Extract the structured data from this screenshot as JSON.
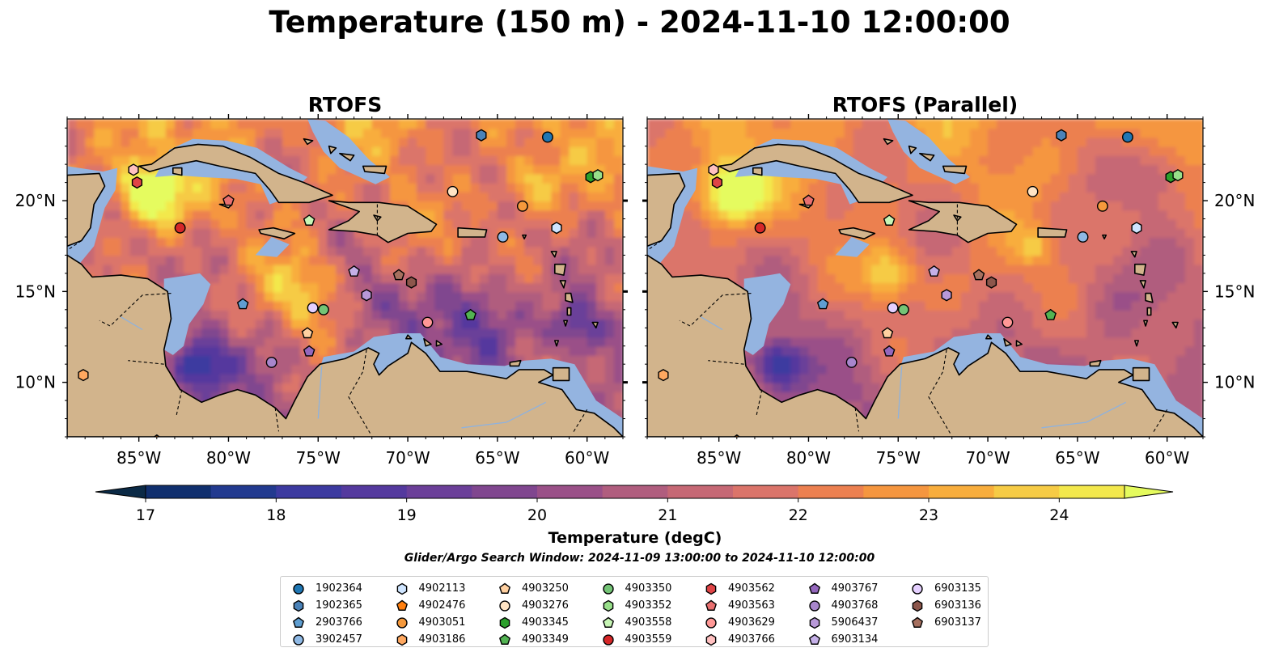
{
  "title": "Temperature (150 m) - 2024-11-10 12:00:00",
  "search_window": "Glider/Argo Search Window: 2024-11-09 13:00:00 to 2024-11-10 12:00:00",
  "colors": {
    "land": "#d2b48c",
    "shelf": "#94b4e0",
    "deep": "#052235",
    "coast": "#000000"
  },
  "chart_data": [
    {
      "type": "heatmap",
      "title": "RTOFS",
      "xlim": [
        -89,
        -58
      ],
      "ylim": [
        7,
        24.5
      ],
      "xticks": [
        -85,
        -80,
        -75,
        -70,
        -65,
        -60
      ],
      "xtick_labels": [
        "85°W",
        "80°W",
        "75°W",
        "70°W",
        "65°W",
        "60°W"
      ],
      "yticks": [
        10,
        15,
        20
      ],
      "ytick_labels": [
        "10°N",
        "15°N",
        "20°N"
      ],
      "ytick_side": "left",
      "anomalies": [
        {
          "lon": -84.3,
          "lat": 20.5,
          "value": 4.2,
          "r": 1.8
        },
        {
          "lon": -81.6,
          "lat": 11,
          "value": -3.5,
          "r": 1.5
        },
        {
          "lon": -76,
          "lat": 15,
          "value": 2.2,
          "r": 2
        },
        {
          "lon": -66,
          "lat": 13.5,
          "value": -2.5,
          "r": 2.5
        },
        {
          "lon": -60.5,
          "lat": 13,
          "value": -2.5,
          "r": 1.5
        },
        {
          "lon": -63,
          "lat": 21,
          "value": 2,
          "r": 1.5
        },
        {
          "lon": -72,
          "lat": 14.5,
          "value": -1.2,
          "r": 1.6
        },
        {
          "lon": -68,
          "lat": 22,
          "value": -0.8,
          "r": 2
        }
      ]
    },
    {
      "type": "heatmap",
      "title": "RTOFS (Parallel)",
      "xlim": [
        -89,
        -58
      ],
      "ylim": [
        7,
        24.5
      ],
      "xticks": [
        -85,
        -80,
        -75,
        -70,
        -65,
        -60
      ],
      "xtick_labels": [
        "85°W",
        "80°W",
        "75°W",
        "70°W",
        "65°W",
        "60°W"
      ],
      "yticks": [
        10,
        15,
        20
      ],
      "ytick_labels": [
        "10°N",
        "15°N",
        "20°N"
      ],
      "ytick_side": "right",
      "anomalies": [
        {
          "lon": -84.3,
          "lat": 20.5,
          "value": 4.2,
          "r": 1.8
        },
        {
          "lon": -81.6,
          "lat": 11,
          "value": -3.2,
          "r": 1.4
        },
        {
          "lon": -75.5,
          "lat": 16,
          "value": 2.5,
          "r": 1.5
        },
        {
          "lon": -67.5,
          "lat": 17.5,
          "value": 1.5,
          "r": 1
        },
        {
          "lon": -63,
          "lat": 15,
          "value": -0.8,
          "r": 2.5
        },
        {
          "lon": -60.5,
          "lat": 21.5,
          "value": -1.6,
          "r": 1.8
        },
        {
          "lon": -70,
          "lat": 15,
          "value": 0.8,
          "r": 3
        }
      ]
    }
  ],
  "colorbar": {
    "label": "Temperature (degC)",
    "levels": [
      17,
      17.5,
      18,
      18.5,
      19,
      19.5,
      20,
      20.5,
      21,
      21.5,
      22,
      22.5,
      23,
      23.5,
      24,
      24.5
    ],
    "colors": [
      "#0b2a46",
      "#102f6e",
      "#223a8f",
      "#3c3aa0",
      "#54399e",
      "#6b3f99",
      "#80468f",
      "#9a5088",
      "#b05d7e",
      "#c66875",
      "#db746a",
      "#ec8050",
      "#f5963f",
      "#f8ad3c",
      "#f6cb45",
      "#f3e84c",
      "#e5fb5e"
    ],
    "ticks": [
      17,
      18,
      19,
      20,
      21,
      22,
      23,
      24
    ],
    "tick_labels": [
      "17",
      "18",
      "19",
      "20",
      "21",
      "22",
      "23",
      "24"
    ]
  },
  "floats": [
    {
      "id": "1902364",
      "marker": "circle",
      "color": "#1f77b4",
      "lon": -62.2,
      "lat": 23.5
    },
    {
      "id": "1902365",
      "marker": "hexagon",
      "color": "#4a82b8",
      "lon": -65.9,
      "lat": 23.6
    },
    {
      "id": "2903766",
      "marker": "pentagon",
      "color": "#5f9ed1",
      "lon": -79.2,
      "lat": 14.3
    },
    {
      "id": "3902457",
      "marker": "circle",
      "color": "#8fb9e5",
      "lon": -64.7,
      "lat": 18
    },
    {
      "id": "4902113",
      "marker": "hexagon",
      "color": "#cfe5ff",
      "lon": -61.7,
      "lat": 18.5
    },
    {
      "id": "4902476",
      "marker": "pentagon",
      "color": "#ff7f0e",
      "lon": -84,
      "lat": 6.8
    },
    {
      "id": "4903051",
      "marker": "circle",
      "color": "#f5993c",
      "lon": -63.6,
      "lat": 19.7
    },
    {
      "id": "4903186",
      "marker": "hexagon",
      "color": "#ffa860",
      "lon": -88.1,
      "lat": 10.4
    },
    {
      "id": "4903250",
      "marker": "pentagon",
      "color": "#ffd0a0",
      "lon": -75.6,
      "lat": 12.7
    },
    {
      "id": "4903276",
      "marker": "circle",
      "color": "#ffe4c4",
      "lon": -67.5,
      "lat": 20.5
    },
    {
      "id": "4903345",
      "marker": "hexagon",
      "color": "#2ca02c",
      "lon": -59.8,
      "lat": 21.3
    },
    {
      "id": "4903349",
      "marker": "pentagon",
      "color": "#52b352",
      "lon": -66.5,
      "lat": 13.7
    },
    {
      "id": "4903350",
      "marker": "circle",
      "color": "#74c476",
      "lon": -74.7,
      "lat": 14
    },
    {
      "id": "4903352",
      "marker": "hexagon",
      "color": "#98df8a",
      "lon": -59.4,
      "lat": 21.4
    },
    {
      "id": "4903558",
      "marker": "pentagon",
      "color": "#c7f5b5",
      "lon": -75.5,
      "lat": 18.9
    },
    {
      "id": "4903559",
      "marker": "circle",
      "color": "#d62728",
      "lon": -82.7,
      "lat": 18.5
    },
    {
      "id": "4903562",
      "marker": "hexagon",
      "color": "#e04446",
      "lon": -85.1,
      "lat": 21
    },
    {
      "id": "4903563",
      "marker": "pentagon",
      "color": "#e97070",
      "lon": -80,
      "lat": 20
    },
    {
      "id": "4903629",
      "marker": "circle",
      "color": "#ff9896",
      "lon": -68.9,
      "lat": 13.3
    },
    {
      "id": "4903766",
      "marker": "hexagon",
      "color": "#ffc0c0",
      "lon": -85.3,
      "lat": 21.7
    },
    {
      "id": "4903767",
      "marker": "pentagon",
      "color": "#9467bd",
      "lon": -75.5,
      "lat": 11.7
    },
    {
      "id": "4903768",
      "marker": "circle",
      "color": "#a886cc",
      "lon": -77.6,
      "lat": 11.1
    },
    {
      "id": "5906437",
      "marker": "hexagon",
      "color": "#b899d8",
      "lon": -72.3,
      "lat": 14.8
    },
    {
      "id": "6903134",
      "marker": "pentagon",
      "color": "#c5b0e8",
      "lon": -73,
      "lat": 16.1
    },
    {
      "id": "6903135",
      "marker": "circle",
      "color": "#e5d0ff",
      "lon": -75.3,
      "lat": 14.1
    },
    {
      "id": "6903136",
      "marker": "hexagon",
      "color": "#8c564b",
      "lon": -69.8,
      "lat": 15.5
    },
    {
      "id": "6903137",
      "marker": "pentagon",
      "color": "#a6705f",
      "lon": -70.5,
      "lat": 15.9
    }
  ],
  "land": [
    [
      [
        -89,
        17
      ],
      [
        -88.2,
        16.5
      ],
      [
        -87.6,
        15.8
      ],
      [
        -86,
        15.9
      ],
      [
        -84.5,
        15.7
      ],
      [
        -83.4,
        15
      ],
      [
        -83.2,
        13.5
      ],
      [
        -83.6,
        11.8
      ],
      [
        -83.5,
        10.9
      ],
      [
        -82.7,
        9.6
      ],
      [
        -81.5,
        8.9
      ],
      [
        -80.5,
        9.3
      ],
      [
        -79.5,
        9.6
      ],
      [
        -78.5,
        9.3
      ],
      [
        -77.4,
        8.6
      ],
      [
        -76.8,
        8
      ],
      [
        -76.3,
        9
      ],
      [
        -75.6,
        10.3
      ],
      [
        -74.9,
        11
      ],
      [
        -73.5,
        11.3
      ],
      [
        -72.2,
        11.9
      ],
      [
        -71.6,
        11.6
      ],
      [
        -71.9,
        11.0
      ],
      [
        -71.6,
        10.4
      ],
      [
        -71.1,
        10.9
      ],
      [
        -70,
        11.6
      ],
      [
        -69.8,
        12.2
      ],
      [
        -69,
        11.6
      ],
      [
        -68.2,
        10.6
      ],
      [
        -66.7,
        10.6
      ],
      [
        -64.5,
        10.2
      ],
      [
        -63.8,
        10.7
      ],
      [
        -62.4,
        10.7
      ],
      [
        -61.9,
        10.4
      ],
      [
        -62.7,
        10
      ],
      [
        -61.4,
        9.6
      ],
      [
        -60.6,
        8.5
      ],
      [
        -59.6,
        8.3
      ],
      [
        -58.5,
        7.5
      ],
      [
        -58,
        7
      ],
      [
        -89,
        7
      ]
    ],
    [
      [
        -85,
        21.9
      ],
      [
        -84.3,
        22.0
      ],
      [
        -83,
        22.9
      ],
      [
        -81.7,
        23.1
      ],
      [
        -80.3,
        23.0
      ],
      [
        -78.8,
        22.4
      ],
      [
        -77.2,
        21.5
      ],
      [
        -75.8,
        21.0
      ],
      [
        -74.2,
        20.3
      ],
      [
        -75.5,
        19.9
      ],
      [
        -77.2,
        19.9
      ],
      [
        -77.7,
        20.6
      ],
      [
        -78.5,
        21.5
      ],
      [
        -80.5,
        21.9
      ],
      [
        -81.8,
        22.2
      ],
      [
        -83.3,
        21.9
      ],
      [
        -84.4,
        21.6
      ]
    ],
    [
      [
        -74.4,
        20.0
      ],
      [
        -73.3,
        19.9
      ],
      [
        -71.6,
        19.9
      ],
      [
        -70.0,
        19.7
      ],
      [
        -68.4,
        18.7
      ],
      [
        -68.7,
        18.3
      ],
      [
        -70.0,
        18.2
      ],
      [
        -71.1,
        17.7
      ],
      [
        -71.7,
        18.1
      ],
      [
        -72.9,
        18.3
      ],
      [
        -74.4,
        18.4
      ],
      [
        -73.3,
        18.9
      ],
      [
        -72.7,
        19.4
      ]
    ],
    [
      [
        -78.3,
        18.4
      ],
      [
        -77.5,
        18.5
      ],
      [
        -76.3,
        18.2
      ],
      [
        -76.9,
        17.9
      ],
      [
        -78.2,
        18.2
      ]
    ],
    [
      [
        -67.2,
        18.5
      ],
      [
        -65.6,
        18.4
      ],
      [
        -65.7,
        18.0
      ],
      [
        -67.2,
        18.0
      ]
    ],
    [
      [
        -89,
        21.4
      ],
      [
        -87.2,
        21.5
      ],
      [
        -86.9,
        20.8
      ],
      [
        -87.5,
        19.8
      ],
      [
        -87.7,
        18.5
      ],
      [
        -88.2,
        17.8
      ],
      [
        -89,
        17.5
      ]
    ],
    [
      [
        -61.9,
        10.8
      ],
      [
        -61.0,
        10.8
      ],
      [
        -61.0,
        10.1
      ],
      [
        -61.9,
        10.1
      ]
    ],
    [
      [
        -70.0,
        12.6
      ],
      [
        -69.8,
        12.4
      ],
      [
        -70.1,
        12.4
      ]
    ],
    [
      [
        -69.1,
        12.4
      ],
      [
        -68.7,
        12.1
      ],
      [
        -69.0,
        12.0
      ]
    ],
    [
      [
        -68.4,
        12.3
      ],
      [
        -68.1,
        12.1
      ],
      [
        -68.4,
        12.0
      ]
    ],
    [
      [
        -64.3,
        11.1
      ],
      [
        -63.7,
        11.2
      ],
      [
        -63.8,
        10.9
      ],
      [
        -64.3,
        10.9
      ]
    ],
    [
      [
        -63.6,
        18.1
      ],
      [
        -63.4,
        18.1
      ],
      [
        -63.5,
        17.9
      ]
    ],
    [
      [
        -62.0,
        17.2
      ],
      [
        -61.7,
        17.2
      ],
      [
        -61.8,
        16.9
      ]
    ],
    [
      [
        -61.8,
        16.5
      ],
      [
        -61.2,
        16.5
      ],
      [
        -61.3,
        15.9
      ],
      [
        -61.8,
        16.0
      ]
    ],
    [
      [
        -61.5,
        15.6
      ],
      [
        -61.2,
        15.6
      ],
      [
        -61.3,
        15.2
      ]
    ],
    [
      [
        -61.2,
        14.9
      ],
      [
        -60.9,
        14.9
      ],
      [
        -60.8,
        14.4
      ],
      [
        -61.2,
        14.5
      ]
    ],
    [
      [
        -61.1,
        14.1
      ],
      [
        -60.9,
        14.1
      ],
      [
        -60.9,
        13.7
      ],
      [
        -61.1,
        13.7
      ]
    ],
    [
      [
        -61.3,
        13.4
      ],
      [
        -61.1,
        13.4
      ],
      [
        -61.2,
        13.1
      ]
    ],
    [
      [
        -61.8,
        12.3
      ],
      [
        -61.6,
        12.3
      ],
      [
        -61.7,
        12.0
      ]
    ],
    [
      [
        -59.7,
        13.3
      ],
      [
        -59.4,
        13.3
      ],
      [
        -59.5,
        13.0
      ]
    ],
    [
      [
        -72.5,
        21.9
      ],
      [
        -71.2,
        21.9
      ],
      [
        -71.3,
        21.5
      ],
      [
        -72.4,
        21.6
      ]
    ],
    [
      [
        -73.8,
        22.6
      ],
      [
        -73.0,
        22.5
      ],
      [
        -73.2,
        22.2
      ]
    ],
    [
      [
        -74.4,
        23.0
      ],
      [
        -74.0,
        22.9
      ],
      [
        -74.3,
        22.6
      ]
    ],
    [
      [
        -75.8,
        23.4
      ],
      [
        -75.3,
        23.3
      ],
      [
        -75.6,
        23.1
      ]
    ],
    [
      [
        -80.5,
        19.8
      ],
      [
        -79.8,
        19.8
      ],
      [
        -80.0,
        19.6
      ]
    ],
    [
      [
        -83.1,
        21.8
      ],
      [
        -82.6,
        21.8
      ],
      [
        -82.6,
        21.4
      ],
      [
        -83.1,
        21.5
      ]
    ],
    [
      [
        -71.9,
        19.2
      ],
      [
        -71.5,
        19.1
      ],
      [
        -71.7,
        18.9
      ]
    ]
  ],
  "borders": [
    [
      [
        -83.2,
        14.9
      ],
      [
        -84.8,
        14.8
      ],
      [
        -86.6,
        13.1
      ],
      [
        -87.2,
        13.4
      ]
    ],
    [
      [
        -83.6,
        11.0
      ],
      [
        -85.6,
        11.2
      ]
    ],
    [
      [
        -82.6,
        9.6
      ],
      [
        -82.9,
        8.2
      ]
    ],
    [
      [
        -77.4,
        8.6
      ],
      [
        -77.2,
        7.3
      ]
    ],
    [
      [
        -72.3,
        11.8
      ],
      [
        -72.5,
        10.6
      ],
      [
        -73.3,
        9.2
      ],
      [
        -72.1,
        7.2
      ]
    ],
    [
      [
        -60.0,
        8.5
      ],
      [
        -60.8,
        7.2
      ]
    ],
    [
      [
        -88.2,
        17.8
      ],
      [
        -89.1,
        17.2
      ]
    ],
    [
      [
        -71.7,
        19.8
      ],
      [
        -71.7,
        18.1
      ]
    ]
  ],
  "rivers": [
    [
      [
        -74.8,
        10.9
      ],
      [
        -74.9,
        9.5
      ],
      [
        -75.0,
        8.0
      ]
    ],
    [
      [
        -62.3,
        8.9
      ],
      [
        -64.5,
        7.8
      ],
      [
        -67,
        7.5
      ]
    ],
    [
      [
        -84.8,
        12.9
      ],
      [
        -86,
        13.6
      ]
    ]
  ],
  "shelf": [
    [
      [
        -83.6,
        15.7
      ],
      [
        -82.2,
        15.9
      ],
      [
        -81.6,
        16
      ],
      [
        -81.0,
        15.4
      ],
      [
        -81.4,
        14.3
      ],
      [
        -82.2,
        13.2
      ],
      [
        -82.5,
        12.0
      ],
      [
        -83.1,
        11.5
      ],
      [
        -83.6,
        11.8
      ]
    ],
    [
      [
        -87.0,
        21.6
      ],
      [
        -86.2,
        21.8
      ],
      [
        -86.3,
        20.6
      ],
      [
        -86.9,
        19.6
      ],
      [
        -87.5,
        17.5
      ],
      [
        -88.5,
        16.3
      ],
      [
        -89,
        16.2
      ],
      [
        -89,
        21.9
      ]
    ],
    [
      [
        -83.3,
        22.8
      ],
      [
        -82.0,
        23.4
      ],
      [
        -80.1,
        23.3
      ],
      [
        -78.4,
        22.9
      ],
      [
        -76.6,
        21.8
      ],
      [
        -75.6,
        21.3
      ],
      [
        -76.8,
        20.1
      ],
      [
        -77.7,
        19.8
      ],
      [
        -78.2,
        20.9
      ],
      [
        -79.6,
        21.2
      ],
      [
        -81.5,
        21.3
      ],
      [
        -82.9,
        21.4
      ],
      [
        -84.1,
        21.3
      ]
    ],
    [
      [
        -75.3,
        23.8
      ],
      [
        -74.7,
        22.7
      ],
      [
        -73.8,
        21.8
      ],
      [
        -72.9,
        21.4
      ],
      [
        -71.8,
        20.9
      ],
      [
        -71.0,
        21.3
      ],
      [
        -72.2,
        22.3
      ],
      [
        -73.3,
        23.5
      ],
      [
        -74.6,
        24.4
      ],
      [
        -75.6,
        24.5
      ]
    ],
    [
      [
        -75.7,
        8.0
      ],
      [
        -75.3,
        9.6
      ],
      [
        -74.7,
        11.4
      ],
      [
        -73.0,
        11.7
      ],
      [
        -71.9,
        12.5
      ],
      [
        -70.5,
        12.7
      ],
      [
        -69.3,
        12.7
      ],
      [
        -68.2,
        11.4
      ],
      [
        -66.7,
        11.0
      ],
      [
        -64.6,
        10.9
      ],
      [
        -63.5,
        11.2
      ],
      [
        -62.0,
        11.3
      ],
      [
        -60.7,
        11.0
      ],
      [
        -60.1,
        10.0
      ],
      [
        -59.5,
        9.0
      ],
      [
        -58,
        8.0
      ],
      [
        -58,
        7
      ],
      [
        -76,
        7
      ]
    ],
    [
      [
        -78.5,
        17.0
      ],
      [
        -77.3,
        16.9
      ],
      [
        -76.6,
        17.6
      ],
      [
        -77.6,
        18.0
      ]
    ],
    [
      [
        -88.1,
        9.8
      ],
      [
        -86.1,
        7.2
      ],
      [
        -89,
        7.2
      ],
      [
        -89,
        9.5
      ]
    ]
  ],
  "deep": [
    [
      [
        -89,
        8.6
      ],
      [
        -87.2,
        10.6
      ],
      [
        -86.4,
        12.0
      ],
      [
        -86.2,
        12.8
      ],
      [
        -87.7,
        13.4
      ],
      [
        -89,
        13.8
      ]
    ]
  ]
}
